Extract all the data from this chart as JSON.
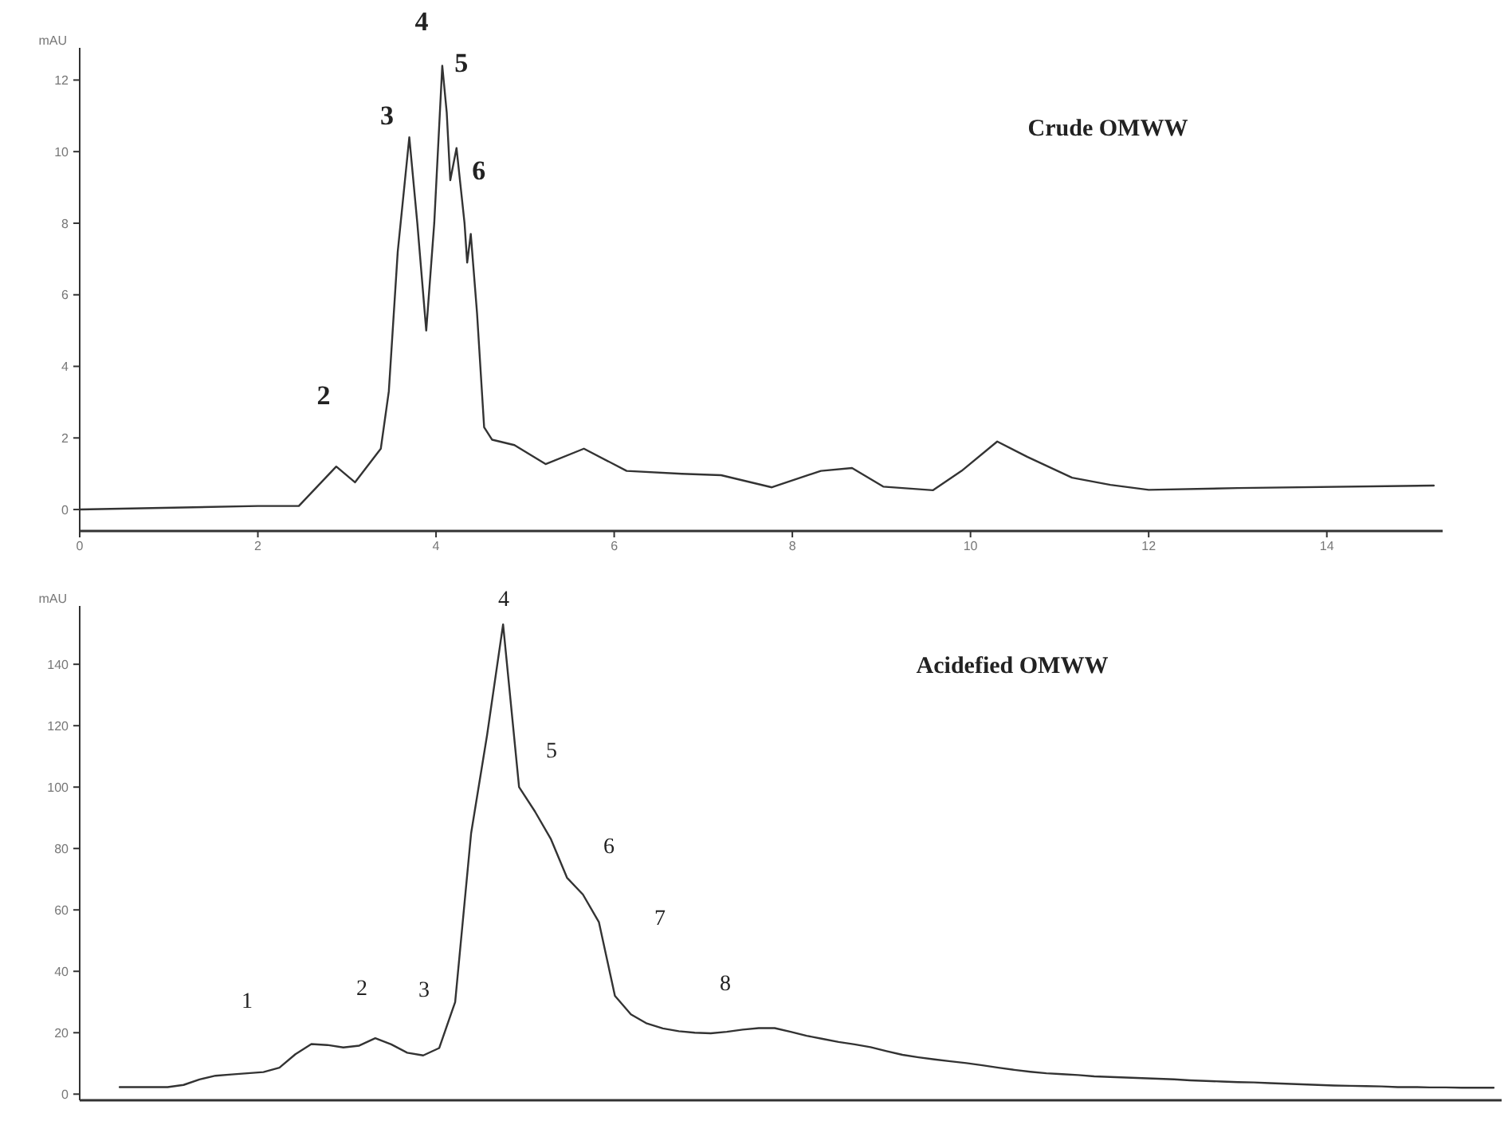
{
  "chart_data": [
    {
      "type": "line",
      "title": "Crude OMWW",
      "ylabel": "mAU",
      "x": [
        0,
        2.0,
        2.46,
        2.88,
        3.09,
        3.38,
        3.47,
        3.57,
        3.7,
        3.79,
        3.89,
        3.98,
        4.07,
        4.12,
        4.16,
        4.23,
        4.32,
        4.35,
        4.39,
        4.46,
        4.54,
        4.63,
        4.88,
        5.23,
        5.66,
        6.14,
        6.76,
        7.2,
        7.77,
        8.32,
        8.67,
        9.02,
        9.58,
        9.9,
        10.3,
        10.64,
        11.14,
        11.57,
        12,
        13,
        15.2
      ],
      "series": [
        {
          "color": "#333333",
          "values": [
            0,
            0.1,
            0.1,
            1.2,
            0.76,
            1.7,
            3.3,
            7.2,
            10.4,
            8.0,
            5.0,
            8.0,
            12.4,
            11.1,
            9.2,
            10.1,
            8.0,
            6.9,
            7.7,
            5.5,
            2.3,
            1.95,
            1.8,
            1.27,
            1.7,
            1.08,
            1.0,
            0.96,
            0.62,
            1.08,
            1.16,
            0.64,
            0.54,
            1.08,
            1.9,
            1.47,
            0.89,
            0.69,
            0.55,
            0.6,
            0.67
          ]
        }
      ],
      "xlim": [
        0,
        15.3
      ],
      "xticks": [
        0,
        2,
        4,
        6,
        8,
        10,
        12,
        14
      ],
      "ylim": [
        -0.6,
        12.9
      ],
      "yticks": [
        0,
        2,
        4,
        6,
        8,
        10,
        12
      ],
      "annotations": [
        {
          "text": "2",
          "x": 2.88,
          "y": 1.2
        },
        {
          "text": "3",
          "x": 3.7,
          "y": 10.4
        },
        {
          "text": "4",
          "x": 4.07,
          "y": 12.4
        },
        {
          "text": "5",
          "x": 4.23,
          "y": 10.1
        },
        {
          "text": "6",
          "x": 4.39,
          "y": 7.7
        }
      ]
    },
    {
      "type": "line",
      "title": "Acidefied OMWW",
      "ylabel": "mAU",
      "categories": [
        null,
        null,
        null,
        null,
        null,
        null,
        null,
        null,
        null,
        null,
        null,
        null,
        null,
        null,
        null,
        null,
        null,
        null,
        null,
        null,
        null,
        null,
        null,
        null,
        null,
        null,
        null,
        null,
        null,
        null,
        null,
        null,
        null,
        null,
        null,
        null,
        null,
        null,
        null,
        null,
        null,
        null,
        null,
        null,
        null,
        null,
        null,
        null,
        null,
        null,
        null,
        null,
        null,
        null,
        null,
        null,
        null,
        null,
        null,
        null,
        null,
        null,
        null,
        null,
        null,
        null,
        null,
        null,
        null,
        null,
        null,
        null,
        null,
        null,
        null,
        null,
        null,
        null,
        null,
        null,
        null,
        null,
        null,
        null,
        null,
        null,
        null
      ],
      "series": [
        {
          "color": "#333333",
          "values": [
            2.3,
            2.3,
            2.3,
            2.3,
            3.0,
            4.8,
            6.0,
            6.4,
            6.8,
            7.2,
            8.6,
            13,
            16.3,
            16.0,
            15.2,
            15.8,
            18.2,
            16.2,
            13.5,
            12.6,
            15,
            30,
            85,
            117,
            153,
            100,
            92,
            83,
            70.5,
            65,
            56,
            32,
            26,
            23,
            21.4,
            20.5,
            20,
            19.8,
            20.3,
            21,
            21.5,
            21.5,
            20.3,
            19,
            18,
            17,
            16.2,
            15.3,
            14,
            12.8,
            12,
            11.3,
            10.7,
            10.1,
            9.4,
            8.6,
            7.9,
            7.3,
            6.8,
            6.5,
            6.2,
            5.8,
            5.6,
            5.4,
            5.2,
            5.0,
            4.8,
            4.5,
            4.3,
            4.1,
            3.9,
            3.8,
            3.6,
            3.4,
            3.2,
            3.0,
            2.8,
            2.7,
            2.6,
            2.5,
            2.3,
            2.3,
            2.2,
            2.2,
            2.1,
            2.1,
            2.1
          ]
        }
      ],
      "ylim": [
        -2,
        159
      ],
      "yticks": [
        0,
        20,
        40,
        60,
        80,
        100,
        120,
        140
      ],
      "tick_labels": "y",
      "annotations": [
        "1",
        "2",
        "3",
        "4",
        "5",
        "6",
        "7",
        "8"
      ]
    }
  ]
}
